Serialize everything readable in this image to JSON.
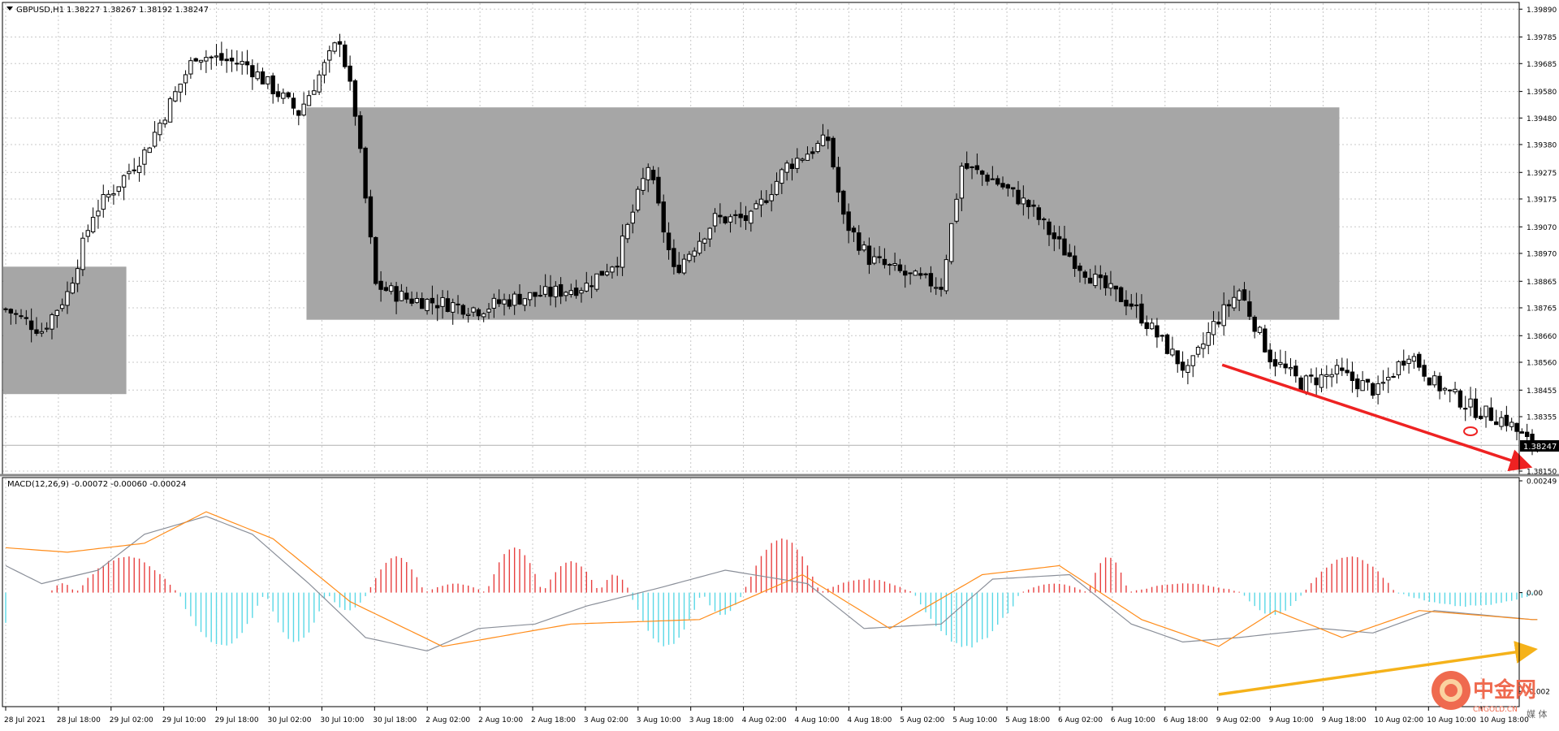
{
  "header": {
    "symbol_label": "GBPUSD,H1",
    "ohlc_label": "1.38227 1.38267 1.38192 1.38247"
  },
  "macd": {
    "label": "MACD(12,26,9) -0.00072 -0.00060 -0.00024",
    "axis_top": "0.00249",
    "axis_zero": "0.00",
    "axis_bottom": "-0.002"
  },
  "watermark": {
    "cn": "中金网",
    "site": "CNGOLD.CN",
    "sub": "媒 体"
  },
  "colors": {
    "background": "#ffffff",
    "grid": "#c8c8c8",
    "candle": "#000000",
    "zone": "#a6a6a6",
    "bear_arrow": "#ee2222",
    "bull_arrow": "#f5b21a",
    "macd_pos": "#e84040",
    "macd_neg": "#5ad8e6",
    "macd_line": "#8a8f99",
    "signal_line": "#ff8c1a",
    "price_box": "#000000"
  },
  "chart_data": {
    "type": "candlestick",
    "symbol": "GBPUSD",
    "timeframe": "H1",
    "last_price": "1.38247",
    "price_axis": {
      "ylim": [
        1.3815,
        1.399
      ],
      "ticks": [
        "1.39890",
        "1.39785",
        "1.39685",
        "1.39580",
        "1.39480",
        "1.39380",
        "1.39275",
        "1.39175",
        "1.39070",
        "1.38970",
        "1.38865",
        "1.38765",
        "1.38660",
        "1.38560",
        "1.38455",
        "1.38355",
        "1.38150"
      ]
    },
    "time_axis": {
      "ticks": [
        "28 Jul 2021",
        "28 Jul 18:00",
        "29 Jul 02:00",
        "29 Jul 10:00",
        "29 Jul 18:00",
        "30 Jul 02:00",
        "30 Jul 10:00",
        "30 Jul 18:00",
        "2 Aug 02:00",
        "2 Aug 10:00",
        "2 Aug 18:00",
        "3 Aug 02:00",
        "3 Aug 10:00",
        "3 Aug 18:00",
        "4 Aug 02:00",
        "4 Aug 10:00",
        "4 Aug 18:00",
        "5 Aug 02:00",
        "5 Aug 10:00",
        "5 Aug 18:00",
        "6 Aug 02:00",
        "6 Aug 10:00",
        "6 Aug 18:00",
        "9 Aug 02:00",
        "9 Aug 10:00",
        "9 Aug 18:00",
        "10 Aug 02:00",
        "10 Aug 10:00",
        "10 Aug 18:00"
      ]
    },
    "close_path": [
      [
        0,
        1.3876
      ],
      [
        7,
        1.3868
      ],
      [
        12,
        1.3882
      ],
      [
        17,
        1.3912
      ],
      [
        27,
        1.3935
      ],
      [
        37,
        1.3972
      ],
      [
        47,
        1.3968
      ],
      [
        57,
        1.395
      ],
      [
        65,
        1.3978
      ],
      [
        68,
        1.395
      ],
      [
        72,
        1.3885
      ],
      [
        78,
        1.388
      ],
      [
        86,
        1.3878
      ],
      [
        92,
        1.3876
      ],
      [
        99,
        1.388
      ],
      [
        106,
        1.3882
      ],
      [
        113,
        1.3885
      ],
      [
        119,
        1.3895
      ],
      [
        125,
        1.393
      ],
      [
        130,
        1.389
      ],
      [
        138,
        1.391
      ],
      [
        145,
        1.391
      ],
      [
        152,
        1.393
      ],
      [
        160,
        1.394
      ],
      [
        163,
        1.391
      ],
      [
        168,
        1.3895
      ],
      [
        176,
        1.3888
      ],
      [
        182,
        1.3885
      ],
      [
        186,
        1.393
      ],
      [
        192,
        1.3925
      ],
      [
        199,
        1.3915
      ],
      [
        203,
        1.3905
      ],
      [
        206,
        1.3898
      ],
      [
        213,
        1.3885
      ],
      [
        219,
        1.3878
      ],
      [
        224,
        1.3866
      ],
      [
        230,
        1.3852
      ],
      [
        235,
        1.387
      ],
      [
        240,
        1.3883
      ],
      [
        246,
        1.3858
      ],
      [
        252,
        1.3848
      ],
      [
        259,
        1.3852
      ],
      [
        267,
        1.3845
      ],
      [
        273,
        1.386
      ],
      [
        278,
        1.3848
      ],
      [
        286,
        1.3838
      ],
      [
        292,
        1.3834
      ],
      [
        296,
        1.3826
      ],
      [
        298,
        1.38247
      ]
    ],
    "bias_zones": [
      {
        "from_bar": 0,
        "to_bar": 23,
        "low": 1.3844,
        "high": 1.3892
      },
      {
        "from_bar": 59,
        "to_bar": 259,
        "low": 1.3872,
        "high": 1.3952
      }
    ],
    "annotations": {
      "bearish_arrow": {
        "from": [
          237,
          1.3855
        ],
        "to": [
          296,
          1.3817
        ]
      },
      "marker_circle": {
        "bar": 285,
        "price": 1.383
      }
    },
    "macd_series": {
      "ylim": [
        -0.00245,
        0.00249
      ],
      "macd_path": [
        [
          0,
          0.0006
        ],
        [
          7,
          0.0002
        ],
        [
          18,
          0.0005
        ],
        [
          27,
          0.0013
        ],
        [
          39,
          0.0017
        ],
        [
          48,
          0.0013
        ],
        [
          59,
          0.0002
        ],
        [
          70,
          -0.001
        ],
        [
          82,
          -0.0013
        ],
        [
          92,
          -0.0008
        ],
        [
          103,
          -0.0007
        ],
        [
          113,
          -0.0003
        ],
        [
          127,
          0.0001
        ],
        [
          140,
          0.0005
        ],
        [
          156,
          0.0002
        ],
        [
          167,
          -0.0008
        ],
        [
          182,
          -0.0007
        ],
        [
          192,
          0.0003
        ],
        [
          207,
          0.0004
        ],
        [
          219,
          -0.0007
        ],
        [
          229,
          -0.0011
        ],
        [
          240,
          -0.001
        ],
        [
          256,
          -0.0008
        ],
        [
          266,
          -0.0009
        ],
        [
          278,
          -0.0004
        ],
        [
          297,
          -0.0006
        ]
      ],
      "signal_path": [
        [
          0,
          0.001
        ],
        [
          12,
          0.0009
        ],
        [
          27,
          0.0011
        ],
        [
          39,
          0.0018
        ],
        [
          52,
          0.0012
        ],
        [
          67,
          -0.0002
        ],
        [
          85,
          -0.0012
        ],
        [
          110,
          -0.0007
        ],
        [
          135,
          -0.0006
        ],
        [
          155,
          0.0004
        ],
        [
          172,
          -0.0008
        ],
        [
          190,
          0.0004
        ],
        [
          205,
          0.0006
        ],
        [
          221,
          -0.0006
        ],
        [
          236,
          -0.0012
        ],
        [
          247,
          -0.0004
        ],
        [
          260,
          -0.001
        ],
        [
          275,
          -0.0004
        ],
        [
          297,
          -0.0006
        ]
      ],
      "histogram_segments": [
        [
          0,
          0,
          -0.0007,
          8
        ],
        [
          9,
          13,
          0.0002,
          14
        ],
        [
          14,
          33,
          0.0008,
          6
        ],
        [
          34,
          50,
          -0.0012,
          8
        ],
        [
          51,
          62,
          -0.0011,
          3
        ],
        [
          63,
          70,
          -0.0004,
          4
        ],
        [
          71,
          81,
          0.0008,
          3
        ],
        [
          82,
          93,
          0.0002,
          10
        ],
        [
          94,
          104,
          0.001,
          4
        ],
        [
          105,
          115,
          0.0007,
          3
        ],
        [
          116,
          121,
          0.0004,
          6
        ],
        [
          122,
          135,
          -0.0012,
          6
        ],
        [
          136,
          143,
          -0.0005,
          3
        ],
        [
          144,
          158,
          0.0012,
          3
        ],
        [
          159,
          176,
          0.0003,
          10
        ],
        [
          177,
          197,
          -0.0012,
          7
        ],
        [
          198,
          210,
          0.0002,
          3
        ],
        [
          211,
          218,
          0.0008,
          3
        ],
        [
          219,
          240,
          0.0002,
          12
        ],
        [
          241,
          252,
          -0.0005,
          3
        ],
        [
          253,
          270,
          0.0008,
          4
        ],
        [
          271,
          298,
          -0.0003,
          12
        ]
      ]
    }
  }
}
